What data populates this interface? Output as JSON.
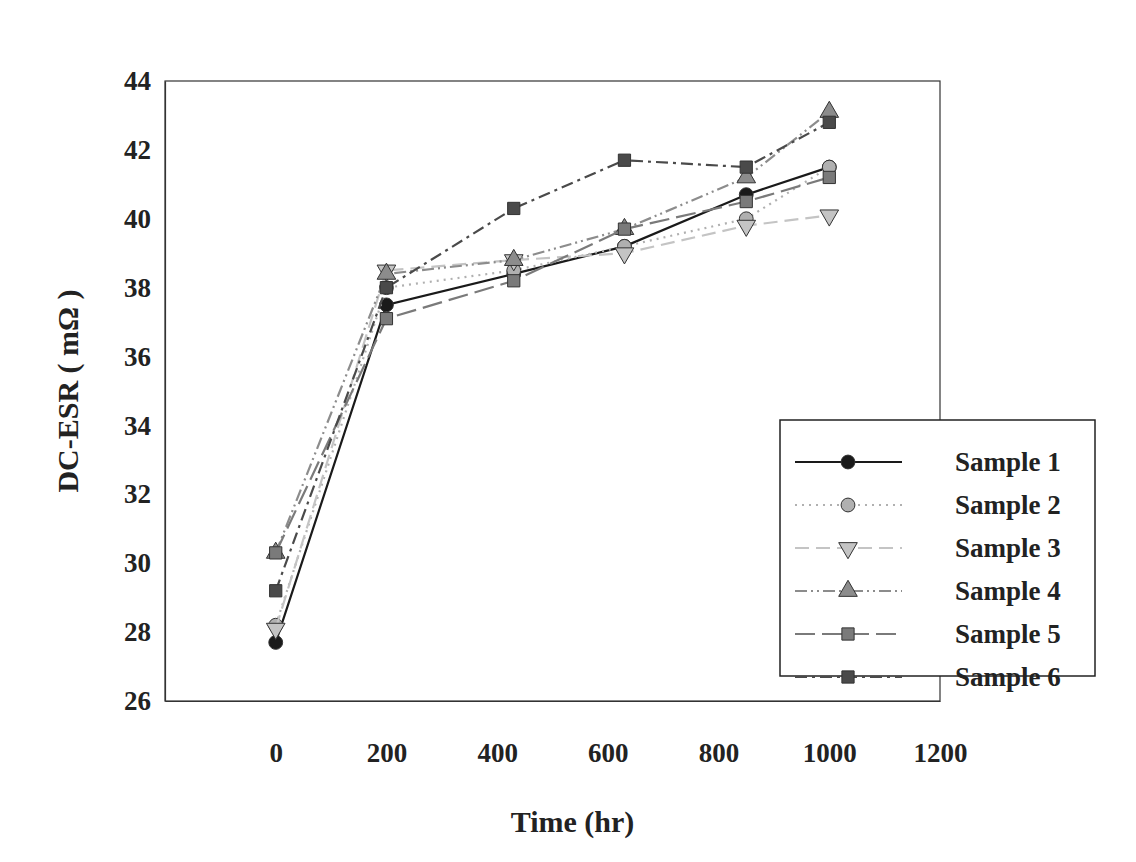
{
  "chart_data": {
    "type": "line",
    "x_label": "Time (hr)",
    "y_label": "DC-ESR ( mΩ )",
    "x": [
      0,
      200,
      430,
      630,
      850,
      1000
    ],
    "xlim": [
      -200,
      1200
    ],
    "xticks": [
      0,
      200,
      400,
      600,
      800,
      1000,
      1200
    ],
    "ylim": [
      26,
      44
    ],
    "yticks": [
      26,
      28,
      30,
      32,
      34,
      36,
      38,
      40,
      42,
      44
    ],
    "grid": false,
    "legend": "lower right",
    "series": [
      {
        "name": "Sample 1",
        "color": "#1a1a1a",
        "marker": "circle",
        "line_style": "solid",
        "values": [
          27.7,
          37.5,
          38.4,
          39.2,
          40.7,
          41.5
        ]
      },
      {
        "name": "Sample 2",
        "color": "#b0b0b0",
        "marker": "circle",
        "line_style": "dotted",
        "values": [
          28.2,
          38.0,
          38.5,
          39.2,
          40.0,
          41.5
        ]
      },
      {
        "name": "Sample 3",
        "color": "#c4c4c4",
        "marker": "triangle-down",
        "line_style": "dashed",
        "values": [
          28.1,
          38.5,
          38.8,
          39.0,
          39.8,
          40.1
        ]
      },
      {
        "name": "Sample 4",
        "color": "#8c8c8c",
        "marker": "triangle",
        "line_style": "dash-dot-dot",
        "values": [
          30.3,
          38.4,
          38.8,
          39.7,
          41.2,
          43.1
        ]
      },
      {
        "name": "Sample 5",
        "color": "#7a7a7a",
        "marker": "square",
        "line_style": "long-dash",
        "values": [
          30.3,
          37.1,
          38.2,
          39.7,
          40.5,
          41.2
        ]
      },
      {
        "name": "Sample 6",
        "color": "#4a4a4a",
        "marker": "square",
        "line_style": "dash-dot",
        "values": [
          29.2,
          38.0,
          40.3,
          41.7,
          41.5,
          42.8
        ]
      }
    ]
  }
}
